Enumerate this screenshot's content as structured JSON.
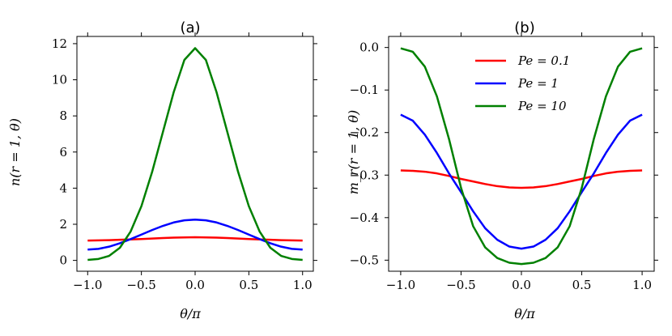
{
  "figure": {
    "panels": [
      {
        "id": "a",
        "title": "(a)",
        "xlabel": "θ/π",
        "ylabel": "n(r = 1, θ)"
      },
      {
        "id": "b",
        "title": "(b)",
        "xlabel": "θ/π",
        "ylabel": "m_r(r = 1, θ)"
      }
    ],
    "legend": [
      "Pe = 0.1",
      "Pe = 1",
      "Pe = 10"
    ]
  },
  "chart_data": [
    {
      "type": "line",
      "title": "(a)",
      "xlabel": "θ/π",
      "ylabel": "n(r = 1, θ)",
      "xlim": [
        -1.1,
        1.1
      ],
      "ylim": [
        -0.6,
        12.4
      ],
      "xticks": [
        -1.0,
        -0.5,
        0.0,
        0.5,
        1.0
      ],
      "xtick_labels": [
        "−1.0",
        "−0.5",
        "0.0",
        "0.5",
        "1.0"
      ],
      "yticks": [
        0,
        2,
        4,
        6,
        8,
        10,
        12
      ],
      "ytick_labels": [
        "0",
        "2",
        "4",
        "6",
        "8",
        "10",
        "12"
      ],
      "series": [
        {
          "name": "Pe = 0.1",
          "color": "#ff0000",
          "x": [
            -1.0,
            -0.9,
            -0.8,
            -0.7,
            -0.6,
            -0.5,
            -0.4,
            -0.3,
            -0.2,
            -0.1,
            0.0,
            0.1,
            0.2,
            0.3,
            0.4,
            0.5,
            0.6,
            0.7,
            0.8,
            0.9,
            1.0
          ],
          "y": [
            1.1,
            1.11,
            1.12,
            1.14,
            1.16,
            1.18,
            1.21,
            1.24,
            1.26,
            1.27,
            1.28,
            1.27,
            1.26,
            1.24,
            1.21,
            1.18,
            1.16,
            1.14,
            1.12,
            1.11,
            1.1
          ]
        },
        {
          "name": "Pe = 1",
          "color": "#0000ff",
          "x": [
            -1.0,
            -0.9,
            -0.8,
            -0.7,
            -0.6,
            -0.5,
            -0.4,
            -0.3,
            -0.2,
            -0.1,
            0.0,
            0.1,
            0.2,
            0.3,
            0.4,
            0.5,
            0.6,
            0.7,
            0.8,
            0.9,
            1.0
          ],
          "y": [
            0.6,
            0.64,
            0.76,
            0.95,
            1.18,
            1.43,
            1.68,
            1.91,
            2.1,
            2.22,
            2.26,
            2.22,
            2.1,
            1.91,
            1.68,
            1.43,
            1.18,
            0.95,
            0.76,
            0.64,
            0.6
          ]
        },
        {
          "name": "Pe = 10",
          "color": "#008000",
          "x": [
            -1.0,
            -0.9,
            -0.8,
            -0.7,
            -0.6,
            -0.5,
            -0.4,
            -0.3,
            -0.2,
            -0.1,
            0.0,
            0.1,
            0.2,
            0.3,
            0.4,
            0.5,
            0.6,
            0.7,
            0.8,
            0.9,
            1.0
          ],
          "y": [
            0.03,
            0.08,
            0.25,
            0.7,
            1.6,
            3.0,
            4.9,
            7.1,
            9.3,
            11.1,
            11.75,
            11.1,
            9.3,
            7.1,
            4.9,
            3.0,
            1.6,
            0.7,
            0.25,
            0.08,
            0.03
          ]
        }
      ]
    },
    {
      "type": "line",
      "title": "(b)",
      "xlabel": "θ/π",
      "ylabel": "m_r(r = 1, θ)",
      "xlim": [
        -1.1,
        1.1
      ],
      "ylim": [
        -0.526,
        0.026
      ],
      "xticks": [
        -1.0,
        -0.5,
        0.0,
        0.5,
        1.0
      ],
      "xtick_labels": [
        "−1.0",
        "−0.5",
        "0.0",
        "0.5",
        "1.0"
      ],
      "yticks": [
        0.0,
        -0.1,
        -0.2,
        -0.3,
        -0.4,
        -0.5
      ],
      "ytick_labels": [
        "0.0",
        "−0.1",
        "−0.2",
        "−0.3",
        "−0.4",
        "−0.5"
      ],
      "legend_location": "upper center",
      "series": [
        {
          "name": "Pe = 0.1",
          "color": "#ff0000",
          "x": [
            -1.0,
            -0.9,
            -0.8,
            -0.7,
            -0.6,
            -0.5,
            -0.4,
            -0.3,
            -0.2,
            -0.1,
            0.0,
            0.1,
            0.2,
            0.3,
            0.4,
            0.5,
            0.6,
            0.7,
            0.8,
            0.9,
            1.0
          ],
          "y": [
            -0.289,
            -0.29,
            -0.292,
            -0.296,
            -0.302,
            -0.309,
            -0.315,
            -0.321,
            -0.326,
            -0.329,
            -0.33,
            -0.329,
            -0.326,
            -0.321,
            -0.315,
            -0.309,
            -0.302,
            -0.296,
            -0.292,
            -0.29,
            -0.289
          ]
        },
        {
          "name": "Pe = 1",
          "color": "#0000ff",
          "x": [
            -1.0,
            -0.9,
            -0.8,
            -0.7,
            -0.6,
            -0.5,
            -0.4,
            -0.3,
            -0.2,
            -0.1,
            0.0,
            0.1,
            0.2,
            0.3,
            0.4,
            0.5,
            0.6,
            0.7,
            0.8,
            0.9,
            1.0
          ],
          "y": [
            -0.158,
            -0.172,
            -0.205,
            -0.248,
            -0.296,
            -0.34,
            -0.385,
            -0.425,
            -0.452,
            -0.468,
            -0.473,
            -0.468,
            -0.452,
            -0.425,
            -0.385,
            -0.34,
            -0.296,
            -0.248,
            -0.205,
            -0.172,
            -0.158
          ]
        },
        {
          "name": "Pe = 10",
          "color": "#008000",
          "x": [
            -1.0,
            -0.9,
            -0.8,
            -0.7,
            -0.6,
            -0.5,
            -0.4,
            -0.3,
            -0.2,
            -0.1,
            0.0,
            0.1,
            0.2,
            0.3,
            0.4,
            0.5,
            0.6,
            0.7,
            0.8,
            0.9,
            1.0
          ],
          "y": [
            -0.002,
            -0.01,
            -0.045,
            -0.115,
            -0.215,
            -0.33,
            -0.42,
            -0.47,
            -0.495,
            -0.506,
            -0.509,
            -0.506,
            -0.495,
            -0.47,
            -0.42,
            -0.33,
            -0.215,
            -0.115,
            -0.045,
            -0.01,
            -0.002
          ]
        }
      ]
    }
  ]
}
